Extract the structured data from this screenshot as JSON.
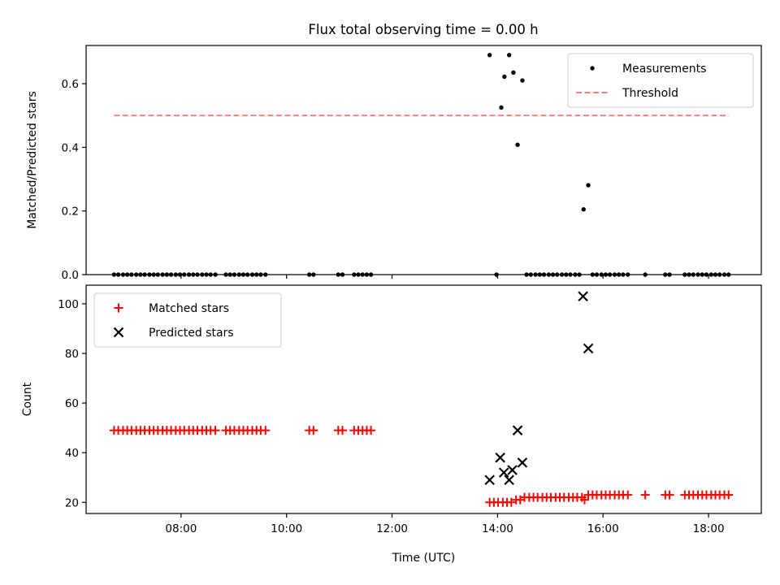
{
  "title": "Flux total observing time = 0.00 h",
  "chart_data": [
    {
      "type": "scatter",
      "ylabel": "Matched/Predicted stars",
      "ylim": [
        0,
        0.72
      ],
      "yticks": [
        0,
        0.2,
        0.4,
        0.6
      ],
      "ytick_labels": [
        "0.0",
        "0.2",
        "0.4",
        "0.6"
      ],
      "xlim": [
        6.2,
        19.0
      ],
      "xticks": [
        8,
        10,
        12,
        14,
        16,
        18
      ],
      "legend_position": "top-right",
      "series": [
        {
          "name": "Measurements",
          "marker": "dot",
          "color": "#000000",
          "x": [
            6.73,
            6.81,
            6.9,
            6.98,
            7.06,
            7.15,
            7.23,
            7.31,
            7.4,
            7.48,
            7.56,
            7.65,
            7.73,
            7.81,
            7.9,
            7.98,
            8.06,
            8.15,
            8.23,
            8.31,
            8.4,
            8.48,
            8.56,
            8.65,
            8.85,
            8.93,
            9.01,
            9.1,
            9.18,
            9.26,
            9.35,
            9.43,
            9.51,
            9.6,
            10.43,
            10.51,
            10.98,
            11.06,
            11.28,
            11.36,
            11.44,
            11.52,
            11.6,
            13.85,
            13.98,
            14.07,
            14.13,
            14.22,
            14.3,
            14.38,
            14.47,
            14.55,
            14.63,
            14.72,
            14.8,
            14.88,
            14.97,
            15.05,
            15.13,
            15.22,
            15.3,
            15.38,
            15.47,
            15.55,
            15.63,
            15.72,
            15.8,
            15.88,
            15.97,
            16.05,
            16.13,
            16.22,
            16.3,
            16.38,
            16.47,
            16.8,
            17.18,
            17.26,
            17.55,
            17.63,
            17.71,
            17.8,
            17.88,
            17.96,
            18.05,
            18.13,
            18.21,
            18.3,
            18.38
          ],
          "y": [
            0,
            0,
            0,
            0,
            0,
            0,
            0,
            0,
            0,
            0,
            0,
            0,
            0,
            0,
            0,
            0,
            0,
            0,
            0,
            0,
            0,
            0,
            0,
            0,
            0,
            0,
            0,
            0,
            0,
            0,
            0,
            0,
            0,
            0,
            0,
            0,
            0,
            0,
            0,
            0,
            0,
            0,
            0,
            0.69,
            0,
            0.525,
            0.622,
            0.69,
            0.635,
            0.408,
            0.61,
            0,
            0,
            0,
            0,
            0,
            0,
            0,
            0,
            0,
            0,
            0,
            0,
            0,
            0.205,
            0.281,
            0,
            0,
            0,
            0,
            0,
            0,
            0,
            0,
            0,
            0,
            0,
            0,
            0,
            0,
            0,
            0,
            0,
            0,
            0,
            0,
            0,
            0,
            0
          ]
        },
        {
          "name": "Threshold",
          "style": "dashed",
          "color": "#ff7f7f",
          "x": [
            6.73,
            18.38
          ],
          "y": [
            0.5,
            0.5
          ]
        }
      ]
    },
    {
      "type": "scatter",
      "xlabel": "Time (UTC)",
      "ylabel": "Count",
      "ylim": [
        15.5,
        107.5
      ],
      "yticks": [
        20,
        40,
        60,
        80,
        100
      ],
      "xlim": [
        6.2,
        19.0
      ],
      "xticks": [
        8,
        10,
        12,
        14,
        16,
        18
      ],
      "xtick_labels": [
        "08:00",
        "10:00",
        "12:00",
        "14:00",
        "16:00",
        "18:00"
      ],
      "legend_position": "top-left",
      "series": [
        {
          "name": "Matched stars",
          "marker": "plus",
          "color": "#ff0000",
          "x": [
            6.73,
            6.81,
            6.9,
            6.98,
            7.06,
            7.15,
            7.23,
            7.31,
            7.4,
            7.48,
            7.56,
            7.65,
            7.73,
            7.81,
            7.9,
            7.98,
            8.06,
            8.15,
            8.23,
            8.31,
            8.4,
            8.48,
            8.56,
            8.65,
            8.85,
            8.93,
            9.01,
            9.1,
            9.18,
            9.26,
            9.35,
            9.43,
            9.51,
            9.6,
            10.43,
            10.51,
            10.98,
            11.06,
            11.28,
            11.36,
            11.44,
            11.52,
            11.6,
            13.85,
            13.93,
            14.01,
            14.1,
            14.18,
            14.26,
            14.35,
            14.43,
            14.51,
            14.6,
            14.68,
            14.76,
            14.85,
            14.93,
            15.01,
            15.1,
            15.18,
            15.26,
            15.35,
            15.43,
            15.51,
            15.6,
            15.65,
            15.72,
            15.8,
            15.88,
            15.97,
            16.05,
            16.13,
            16.22,
            16.3,
            16.38,
            16.47,
            16.8,
            17.18,
            17.26,
            17.55,
            17.63,
            17.71,
            17.8,
            17.88,
            17.96,
            18.05,
            18.13,
            18.21,
            18.3,
            18.38
          ],
          "y": [
            49,
            49,
            49,
            49,
            49,
            49,
            49,
            49,
            49,
            49,
            49,
            49,
            49,
            49,
            49,
            49,
            49,
            49,
            49,
            49,
            49,
            49,
            49,
            49,
            49,
            49,
            49,
            49,
            49,
            49,
            49,
            49,
            49,
            49,
            49,
            49,
            49,
            49,
            49,
            49,
            49,
            49,
            49,
            20,
            20,
            20,
            20,
            20,
            20,
            21,
            21,
            22,
            22,
            22,
            22,
            22,
            22,
            22,
            22,
            22,
            22,
            22,
            22,
            22,
            22,
            21,
            23,
            23,
            23,
            23,
            23,
            23,
            23,
            23,
            23,
            23,
            23,
            23,
            23,
            23,
            23,
            23,
            23,
            23,
            23,
            23,
            23,
            23,
            23,
            23
          ]
        },
        {
          "name": "Predicted stars",
          "marker": "x",
          "color": "#000000",
          "x": [
            13.85,
            14.05,
            14.12,
            14.22,
            14.28,
            14.38,
            14.47,
            15.62,
            15.72
          ],
          "y": [
            29,
            38,
            32,
            29,
            33,
            49,
            36,
            103,
            82
          ]
        }
      ]
    }
  ]
}
